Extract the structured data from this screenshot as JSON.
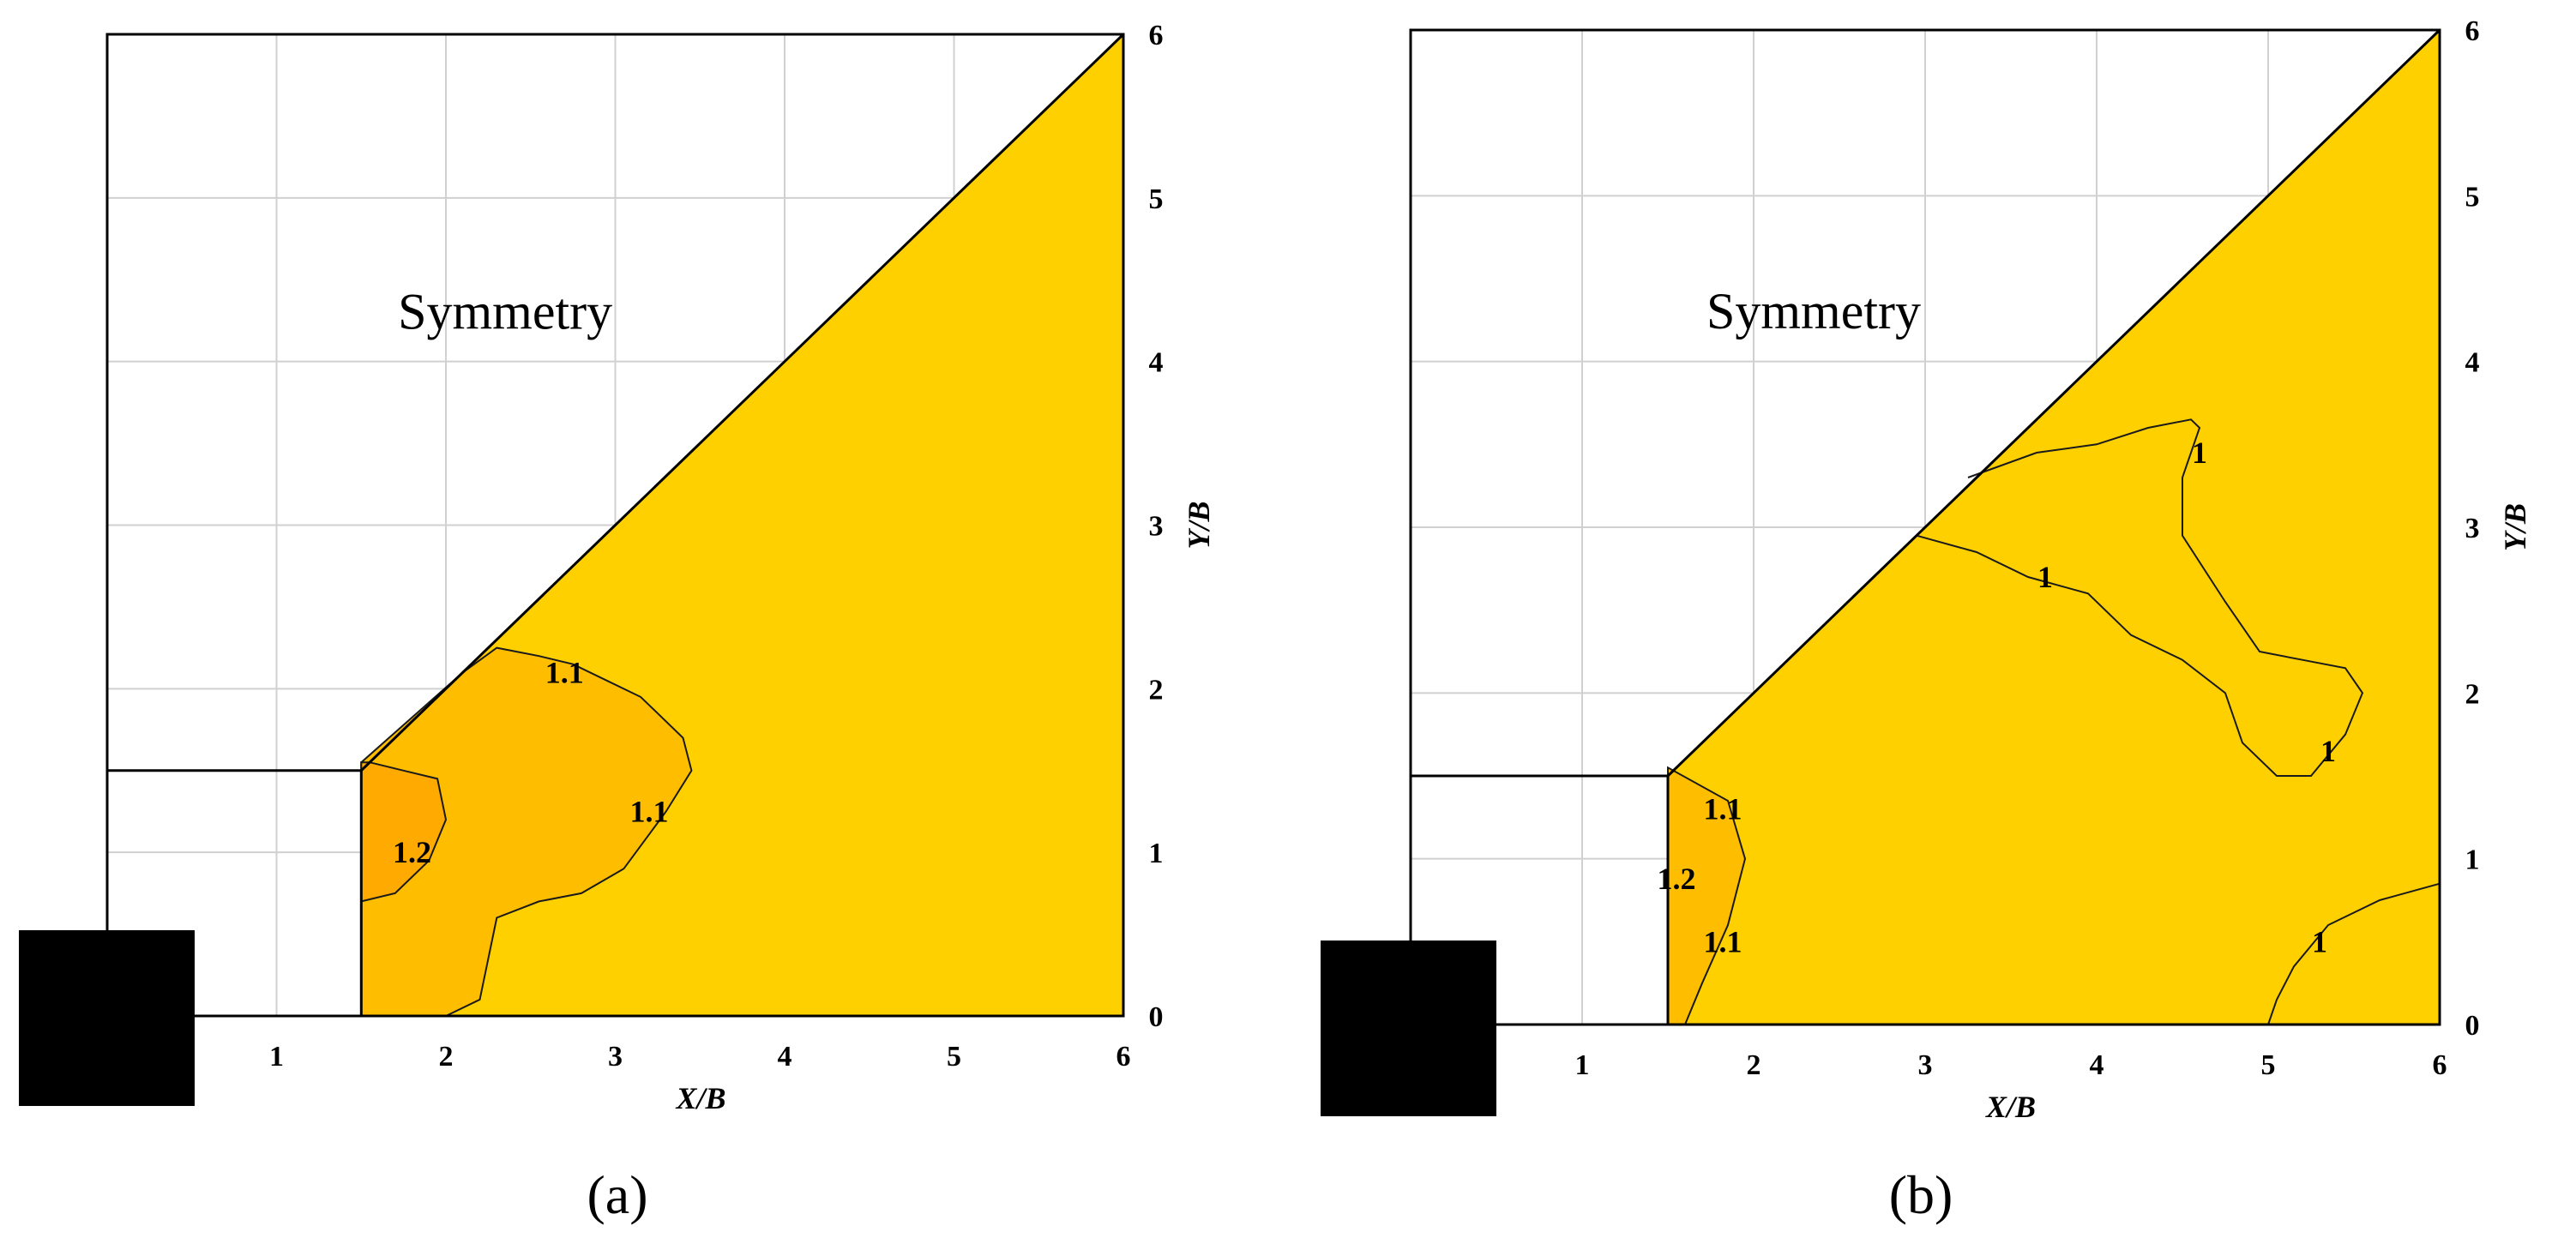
{
  "chart_data": [
    {
      "type": "contour",
      "caption": "(a)",
      "xlabel": "X/B",
      "ylabel": "Y/B",
      "xlim": [
        0,
        6
      ],
      "ylim": [
        0,
        6
      ],
      "xticks": [
        "1",
        "2",
        "3",
        "4",
        "5",
        "6"
      ],
      "yticks": [
        "0",
        "1",
        "2",
        "3",
        "4",
        "5",
        "6"
      ],
      "annotation": "Symmetry",
      "colors": {
        "base": "#ffd000",
        "level_1_1": "#ffbd00",
        "level_1_2": "#ffaa00"
      },
      "levels": [
        {
          "value": "1.2",
          "boundary": [
            [
              1.5,
              0.7
            ],
            [
              1.7,
              0.75
            ],
            [
              1.9,
              0.95
            ],
            [
              2.0,
              1.2
            ],
            [
              1.95,
              1.45
            ],
            [
              1.75,
              1.5
            ],
            [
              1.55,
              1.55
            ],
            [
              1.5,
              1.55
            ]
          ]
        },
        {
          "value": "1.1",
          "boundary": [
            [
              1.5,
              0
            ],
            [
              2.0,
              0
            ],
            [
              2.2,
              0.1
            ],
            [
              2.25,
              0.35
            ],
            [
              2.3,
              0.6
            ],
            [
              2.55,
              0.7
            ],
            [
              2.8,
              0.75
            ],
            [
              3.05,
              0.9
            ],
            [
              3.3,
              1.25
            ],
            [
              3.45,
              1.5
            ],
            [
              3.4,
              1.7
            ],
            [
              3.15,
              1.95
            ],
            [
              2.95,
              2.05
            ],
            [
              2.75,
              2.15
            ],
            [
              2.55,
              2.2
            ],
            [
              2.3,
              2.25
            ],
            [
              2.1,
              2.1
            ],
            [
              1.5,
              1.55
            ]
          ]
        }
      ],
      "contour_labels": [
        {
          "text": "1.2",
          "x": 1.8,
          "y": 1.0
        },
        {
          "text": "1.1",
          "x": 2.7,
          "y": 2.1
        },
        {
          "text": "1.1",
          "x": 3.2,
          "y": 1.25
        }
      ]
    },
    {
      "type": "contour",
      "caption": "(b)",
      "xlabel": "X/B",
      "ylabel": "Y/B",
      "xlim": [
        0,
        6
      ],
      "ylim": [
        0,
        6
      ],
      "xticks": [
        "1",
        "2",
        "3",
        "4",
        "5",
        "6"
      ],
      "yticks": [
        "0",
        "1",
        "2",
        "3",
        "4",
        "5",
        "6"
      ],
      "annotation": "Symmetry",
      "colors": {
        "base": "#ffd000",
        "level_1_1": "#ffbd00",
        "level_1_2": "#ffaa00"
      },
      "levels": [
        {
          "value": "1.1",
          "boundary": [
            [
              1.5,
              0
            ],
            [
              1.6,
              0
            ],
            [
              1.7,
              0.25
            ],
            [
              1.85,
              0.6
            ],
            [
              1.95,
              1.0
            ],
            [
              1.85,
              1.35
            ],
            [
              1.5,
              1.55
            ]
          ]
        }
      ],
      "lines": [
        {
          "value": "1",
          "points": [
            [
              2.95,
              2.95
            ],
            [
              3.3,
              2.85
            ],
            [
              3.6,
              2.7
            ],
            [
              3.95,
              2.6
            ],
            [
              4.2,
              2.35
            ],
            [
              4.5,
              2.2
            ],
            [
              4.75,
              2.0
            ],
            [
              4.85,
              1.7
            ],
            [
              5.05,
              1.5
            ],
            [
              5.25,
              1.5
            ],
            [
              5.45,
              1.75
            ],
            [
              5.55,
              2.0
            ],
            [
              5.45,
              2.15
            ],
            [
              5.2,
              2.2
            ],
            [
              4.95,
              2.25
            ],
            [
              4.75,
              2.55
            ],
            [
              4.5,
              2.95
            ],
            [
              4.5,
              3.3
            ],
            [
              4.6,
              3.6
            ],
            [
              4.55,
              3.65
            ],
            [
              4.3,
              3.6
            ],
            [
              4.0,
              3.5
            ],
            [
              3.65,
              3.45
            ],
            [
              3.25,
              3.3
            ]
          ]
        },
        {
          "value": "1",
          "points": [
            [
              5.0,
              0
            ],
            [
              5.05,
              0.15
            ],
            [
              5.15,
              0.35
            ],
            [
              5.35,
              0.6
            ],
            [
              5.65,
              0.75
            ],
            [
              6.0,
              0.85
            ]
          ]
        }
      ],
      "contour_labels": [
        {
          "text": "1.1",
          "x": 1.82,
          "y": 1.3
        },
        {
          "text": "1.2",
          "x": 1.55,
          "y": 0.88
        },
        {
          "text": "1.1",
          "x": 1.82,
          "y": 0.5
        },
        {
          "text": "1",
          "x": 4.6,
          "y": 3.45
        },
        {
          "text": "1",
          "x": 3.7,
          "y": 2.7
        },
        {
          "text": "1",
          "x": 5.35,
          "y": 1.65
        },
        {
          "text": "1",
          "x": 5.3,
          "y": 0.5
        }
      ]
    }
  ]
}
